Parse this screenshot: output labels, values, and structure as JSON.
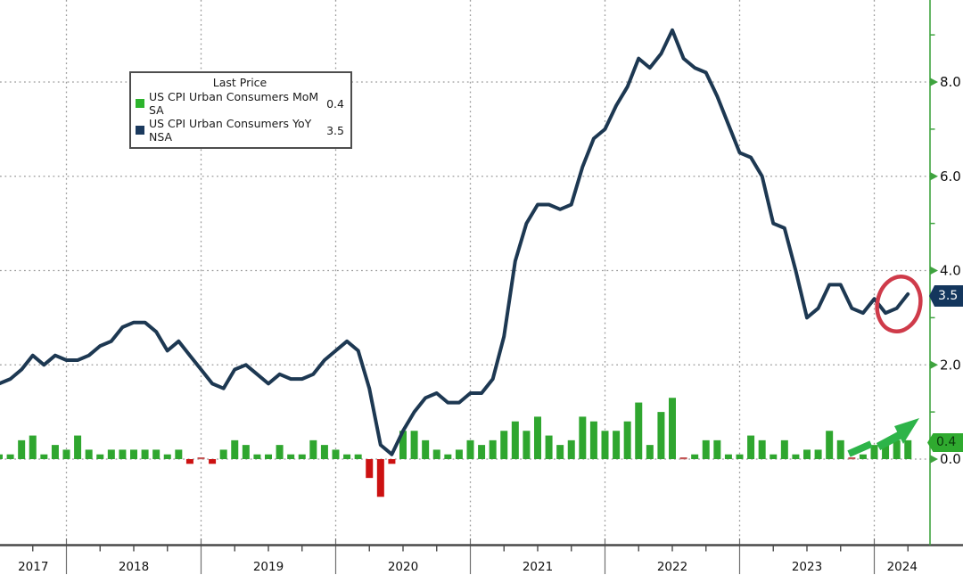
{
  "legend": {
    "title": "Last Price",
    "items": [
      {
        "label": "US CPI Urban Consumers MoM SA",
        "value": "0.4",
        "color": "#2db42d"
      },
      {
        "label": "US CPI Urban Consumers YoY NSA",
        "value": "3.5",
        "color": "#1b3a5e"
      }
    ]
  },
  "badges": {
    "yoy": {
      "text": "3.5",
      "bg": "#14365d"
    },
    "mom": {
      "text": "0.4",
      "bg": "#2faa2f"
    }
  },
  "colors": {
    "line": "#1d3852",
    "bar_positive": "#2fa62f",
    "bar_negative": "#cc1111",
    "bar_zero_dash": "#c25555",
    "axis_green": "#3fa33f",
    "axis_black": "#4a4a4a",
    "grid": "#9a9a9a",
    "annotation_red": "#cf3b4a",
    "annotation_green": "#2db449",
    "tick_text": "#111111",
    "background": "#ffffff"
  },
  "x_axis": {
    "years": [
      "2017",
      "2018",
      "2019",
      "2020",
      "2021",
      "2022",
      "2023",
      "2024"
    ]
  },
  "y_axis": {
    "side": "right",
    "major_ticks": [
      0,
      2,
      4,
      6,
      8
    ],
    "major_labels": [
      "0.0",
      "2.0",
      "4.0",
      "6.0",
      "8.0"
    ],
    "minor_ticks": [
      1,
      3,
      5,
      7,
      9
    ],
    "ylim": [
      -1.8,
      9.7
    ]
  },
  "chart_data": {
    "type": "combo",
    "title": "",
    "grid": "dotted",
    "legend_position": "top-left",
    "series": [
      {
        "name": "US CPI Urban Consumers MoM SA",
        "type": "bar",
        "last": 0.4,
        "start_year": 2017,
        "start_month": 6,
        "values": [
          0.1,
          0.1,
          0.4,
          0.5,
          0.1,
          0.3,
          0.2,
          0.5,
          0.2,
          0.1,
          0.2,
          0.2,
          0.2,
          0.2,
          0.2,
          0.1,
          0.2,
          -0.1,
          0.0,
          -0.1,
          0.2,
          0.4,
          0.3,
          0.1,
          0.1,
          0.3,
          0.1,
          0.1,
          0.4,
          0.3,
          0.2,
          0.1,
          0.1,
          -0.4,
          -0.8,
          -0.1,
          0.6,
          0.6,
          0.4,
          0.2,
          0.1,
          0.2,
          0.4,
          0.3,
          0.4,
          0.6,
          0.8,
          0.6,
          0.9,
          0.5,
          0.3,
          0.4,
          0.9,
          0.8,
          0.6,
          0.6,
          0.8,
          1.2,
          0.3,
          1.0,
          1.3,
          0.0,
          0.1,
          0.4,
          0.4,
          0.1,
          0.1,
          0.5,
          0.4,
          0.1,
          0.4,
          0.1,
          0.2,
          0.2,
          0.6,
          0.4,
          0.0,
          0.1,
          0.3,
          0.3,
          0.4,
          0.4
        ]
      },
      {
        "name": "US CPI Urban Consumers YoY NSA",
        "type": "line",
        "last": 3.5,
        "start_year": 2017,
        "start_month": 5,
        "values": [
          1.9,
          1.6,
          1.7,
          1.9,
          2.2,
          2.0,
          2.2,
          2.1,
          2.1,
          2.2,
          2.4,
          2.5,
          2.8,
          2.9,
          2.9,
          2.7,
          2.3,
          2.5,
          2.2,
          1.9,
          1.6,
          1.5,
          1.9,
          2.0,
          1.8,
          1.6,
          1.8,
          1.7,
          1.7,
          1.8,
          2.1,
          2.3,
          2.5,
          2.3,
          1.5,
          0.3,
          0.1,
          0.6,
          1.0,
          1.3,
          1.4,
          1.2,
          1.2,
          1.4,
          1.4,
          1.7,
          2.6,
          4.2,
          5.0,
          5.4,
          5.4,
          5.3,
          5.4,
          6.2,
          6.8,
          7.0,
          7.5,
          7.9,
          8.5,
          8.3,
          8.6,
          9.1,
          8.5,
          8.3,
          8.2,
          7.7,
          7.1,
          6.5,
          6.4,
          6.0,
          5.0,
          4.9,
          4.0,
          3.0,
          3.2,
          3.7,
          3.7,
          3.2,
          3.1,
          3.4,
          3.1,
          3.2,
          3.5
        ]
      }
    ],
    "annotations": [
      {
        "type": "ellipse",
        "meaning": "highlight of latest YoY uptick",
        "color": "#cf3b4a"
      },
      {
        "type": "arrow",
        "meaning": "rising MoM trend arrow",
        "color": "#2db449"
      }
    ]
  }
}
